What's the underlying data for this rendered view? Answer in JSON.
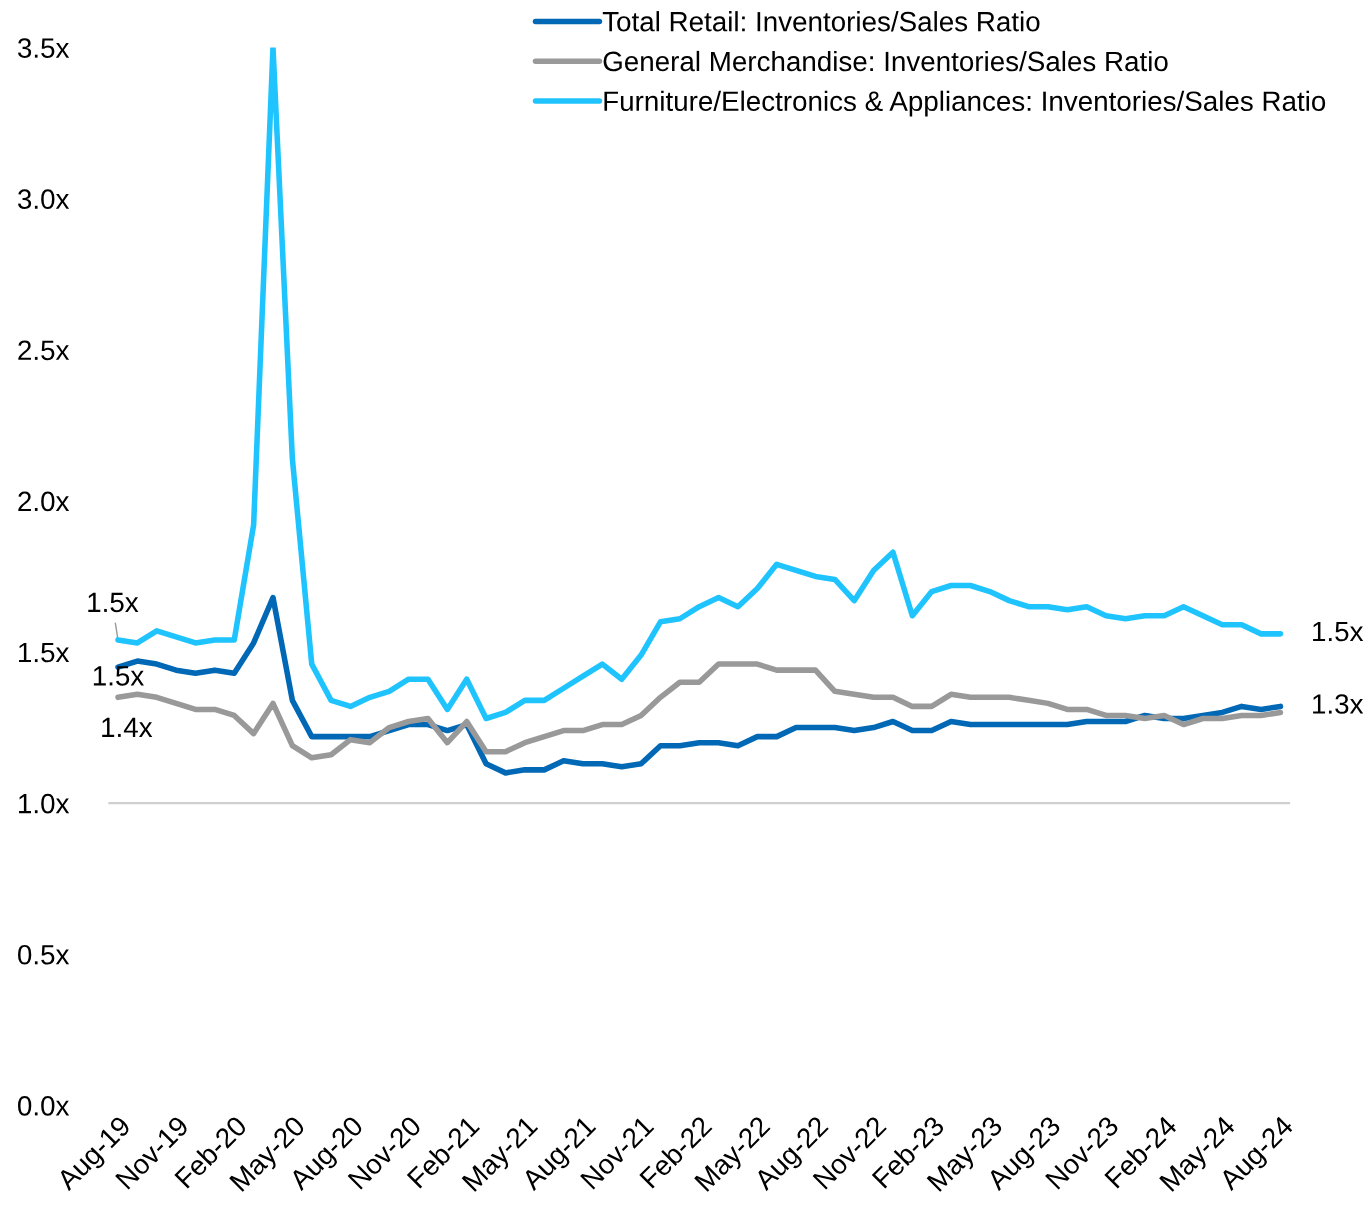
{
  "chart_data": {
    "type": "line",
    "categories": [
      "Aug-19",
      null,
      null,
      "Nov-19",
      null,
      null,
      "Feb-20",
      null,
      null,
      "May-20",
      null,
      null,
      "Aug-20",
      null,
      null,
      "Nov-20",
      null,
      null,
      "Feb-21",
      null,
      null,
      "May-21",
      null,
      null,
      "Aug-21",
      null,
      null,
      "Nov-21",
      null,
      null,
      "Feb-22",
      null,
      null,
      "May-22",
      null,
      null,
      "Aug-22",
      null,
      null,
      "Nov-22",
      null,
      null,
      "Feb-23",
      null,
      null,
      "May-23",
      null,
      null,
      "Aug-23",
      null,
      null,
      "Nov-23",
      null,
      null,
      "Feb-24",
      null,
      null,
      "May-24",
      null,
      null,
      "Aug-24"
    ],
    "series": [
      {
        "name": "Total Retail: Inventories/Sales Ratio",
        "color": "#0068b5",
        "values": [
          1.45,
          1.47,
          1.46,
          1.44,
          1.43,
          1.44,
          1.43,
          1.53,
          1.68,
          1.34,
          1.22,
          1.22,
          1.22,
          1.22,
          1.24,
          1.26,
          1.26,
          1.24,
          1.26,
          1.13,
          1.1,
          1.11,
          1.11,
          1.14,
          1.13,
          1.13,
          1.12,
          1.13,
          1.19,
          1.19,
          1.2,
          1.2,
          1.19,
          1.22,
          1.22,
          1.25,
          1.25,
          1.25,
          1.24,
          1.25,
          1.27,
          1.24,
          1.24,
          1.27,
          1.26,
          1.26,
          1.26,
          1.26,
          1.26,
          1.26,
          1.27,
          1.27,
          1.27,
          1.29,
          1.28,
          1.28,
          1.29,
          1.3,
          1.32,
          1.31,
          1.32
        ]
      },
      {
        "name": "General Merchandise: Inventories/Sales Ratio",
        "color": "#999999",
        "values": [
          1.35,
          1.36,
          1.35,
          1.33,
          1.31,
          1.31,
          1.29,
          1.23,
          1.33,
          1.19,
          1.15,
          1.16,
          1.21,
          1.2,
          1.25,
          1.27,
          1.28,
          1.2,
          1.27,
          1.17,
          1.17,
          1.2,
          1.22,
          1.24,
          1.24,
          1.26,
          1.26,
          1.29,
          1.35,
          1.4,
          1.4,
          1.46,
          1.46,
          1.46,
          1.44,
          1.44,
          1.44,
          1.37,
          1.36,
          1.35,
          1.35,
          1.32,
          1.32,
          1.36,
          1.35,
          1.35,
          1.35,
          1.34,
          1.33,
          1.31,
          1.31,
          1.29,
          1.29,
          1.28,
          1.29,
          1.26,
          1.28,
          1.28,
          1.29,
          1.29,
          1.3
        ]
      },
      {
        "name": "Furniture/Electronics & Appliances: Inventories/Sales Ratio",
        "color": "#1fc4ff",
        "values": [
          1.54,
          1.53,
          1.57,
          1.55,
          1.53,
          1.54,
          1.54,
          1.92,
          3.5,
          2.14,
          1.46,
          1.34,
          1.32,
          1.35,
          1.37,
          1.41,
          1.41,
          1.31,
          1.41,
          1.28,
          1.3,
          1.34,
          1.34,
          1.38,
          1.42,
          1.46,
          1.41,
          1.49,
          1.6,
          1.61,
          1.65,
          1.68,
          1.65,
          1.71,
          1.79,
          1.77,
          1.75,
          1.74,
          1.67,
          1.77,
          1.83,
          1.62,
          1.7,
          1.72,
          1.72,
          1.7,
          1.67,
          1.65,
          1.65,
          1.64,
          1.65,
          1.62,
          1.61,
          1.62,
          1.62,
          1.65,
          1.62,
          1.59,
          1.59,
          1.56,
          1.56
        ]
      }
    ],
    "ylim": [
      0,
      3.5
    ],
    "yticks": [
      {
        "value": 0,
        "label": "0.0x"
      },
      {
        "value": 0.5,
        "label": "0.5x"
      },
      {
        "value": 1,
        "label": "1.0x"
      },
      {
        "value": 1.5,
        "label": "1.5x"
      },
      {
        "value": 2,
        "label": "2.0x"
      },
      {
        "value": 2.5,
        "label": "2.5x"
      },
      {
        "value": 3,
        "label": "3.0x"
      },
      {
        "value": 3.5,
        "label": "3.5x"
      }
    ],
    "annotations": [
      {
        "text": "1.5x",
        "x": "Aug-19",
        "y": 1.54
      },
      {
        "text": "1.5x",
        "x": "Aug-19",
        "y": 1.45
      },
      {
        "text": "1.4x",
        "x": "Aug-19",
        "y": 1.35
      },
      {
        "text": "1.5x",
        "x": "Aug-24",
        "y": 1.56
      },
      {
        "text": "1.3x",
        "x": "Aug-24",
        "y": 1.32
      }
    ],
    "ref_lines": [
      {
        "axis": "y",
        "value": 1,
        "color": "#d0d0d0",
        "line_style": "solid"
      }
    ],
    "grid": false,
    "legend": "top right",
    "marker": "none",
    "line_style": "solid"
  }
}
